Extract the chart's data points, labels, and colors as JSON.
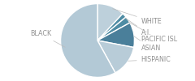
{
  "labels": [
    "WHITE",
    "A.I.",
    "PACIFIC ISL",
    "ASIAN",
    "HISPANIC",
    "BLACK"
  ],
  "sizes": [
    12,
    2,
    3,
    11,
    14,
    58
  ],
  "colors_map": {
    "WHITE": "#bdd0db",
    "A.I.": "#4e8ca4",
    "PACIFIC ISL": "#4e8ca4",
    "ASIAN": "#4a7f9a",
    "HISPANIC": "#b8ccd8",
    "BLACK": "#b3c9d6"
  },
  "startangle": 90,
  "background_color": "#ffffff",
  "text_color": "#909090",
  "font_size": 5.8,
  "edge_color": "#ffffff",
  "edge_lw": 1.0
}
